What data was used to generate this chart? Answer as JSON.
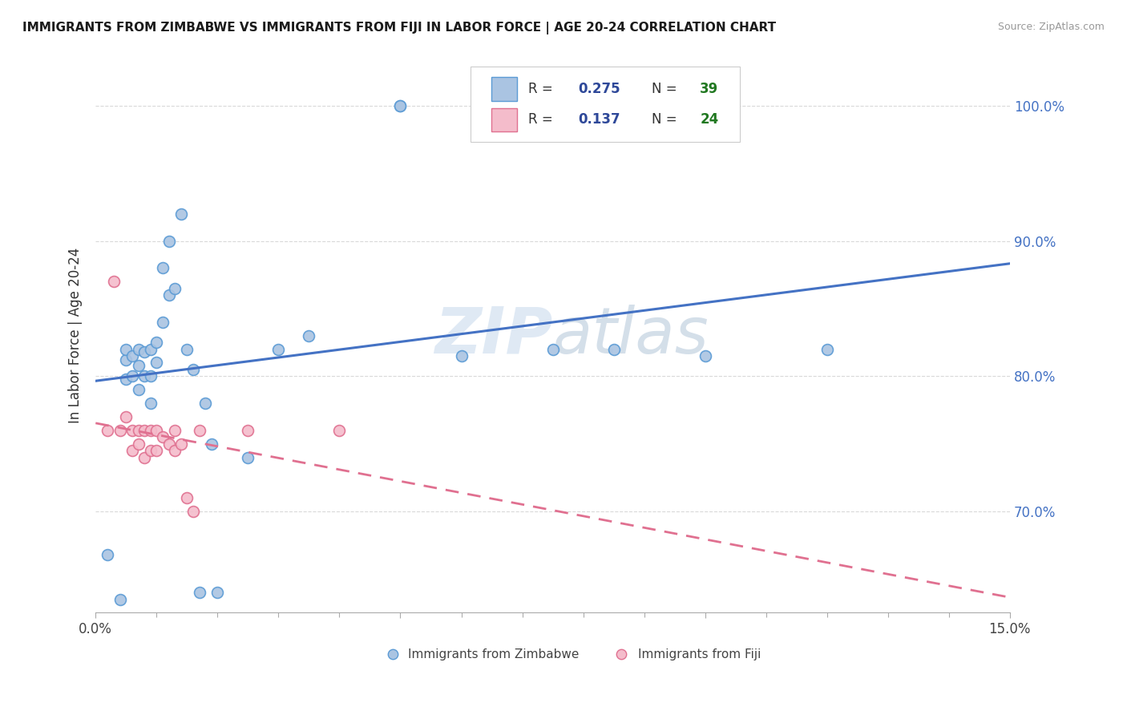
{
  "title": "IMMIGRANTS FROM ZIMBABWE VS IMMIGRANTS FROM FIJI IN LABOR FORCE | AGE 20-24 CORRELATION CHART",
  "source": "Source: ZipAtlas.com",
  "ylabel": "In Labor Force | Age 20-24",
  "ylabel_right_ticks": [
    "70.0%",
    "80.0%",
    "90.0%",
    "100.0%"
  ],
  "ylabel_right_vals": [
    0.7,
    0.8,
    0.9,
    1.0
  ],
  "xmin": 0.0,
  "xmax": 0.15,
  "ymin": 0.625,
  "ymax": 1.035,
  "zimbabwe_color": "#aac4e2",
  "zimbabwe_edge_color": "#5b9bd5",
  "fiji_color": "#f4bccb",
  "fiji_edge_color": "#e07090",
  "trend_zimbabwe_color": "#4472c4",
  "trend_fiji_color": "#e07090",
  "r_zimbabwe": 0.275,
  "n_zimbabwe": 39,
  "r_fiji": 0.137,
  "n_fiji": 24,
  "legend_r_color": "#2e4899",
  "legend_n_color": "#217821",
  "watermark_color": "#ccd9ea",
  "background_color": "#ffffff",
  "grid_color": "#d9d9d9",
  "marker_size": 100,
  "zimbabwe_x": [
    0.002,
    0.004,
    0.005,
    0.005,
    0.005,
    0.006,
    0.006,
    0.007,
    0.007,
    0.007,
    0.008,
    0.008,
    0.009,
    0.009,
    0.009,
    0.01,
    0.01,
    0.011,
    0.011,
    0.012,
    0.012,
    0.013,
    0.014,
    0.015,
    0.016,
    0.017,
    0.018,
    0.019,
    0.02,
    0.025,
    0.03,
    0.035,
    0.05,
    0.05,
    0.06,
    0.075,
    0.085,
    0.1,
    0.12
  ],
  "zimbabwe_y": [
    0.668,
    0.635,
    0.798,
    0.812,
    0.82,
    0.8,
    0.815,
    0.79,
    0.808,
    0.82,
    0.8,
    0.818,
    0.78,
    0.8,
    0.82,
    0.81,
    0.825,
    0.84,
    0.88,
    0.86,
    0.9,
    0.865,
    0.92,
    0.82,
    0.805,
    0.64,
    0.78,
    0.75,
    0.64,
    0.74,
    0.82,
    0.83,
    1.0,
    1.0,
    0.815,
    0.82,
    0.82,
    0.815,
    0.82
  ],
  "fiji_x": [
    0.002,
    0.003,
    0.004,
    0.005,
    0.006,
    0.006,
    0.007,
    0.007,
    0.008,
    0.008,
    0.009,
    0.009,
    0.01,
    0.01,
    0.011,
    0.012,
    0.013,
    0.013,
    0.014,
    0.015,
    0.016,
    0.017,
    0.025,
    0.04
  ],
  "fiji_y": [
    0.76,
    0.87,
    0.76,
    0.77,
    0.745,
    0.76,
    0.75,
    0.76,
    0.74,
    0.76,
    0.745,
    0.76,
    0.745,
    0.76,
    0.755,
    0.75,
    0.745,
    0.76,
    0.75,
    0.71,
    0.7,
    0.76,
    0.76,
    0.76
  ],
  "x_ticks": [
    0.0,
    0.05,
    0.1,
    0.15
  ],
  "x_tick_labels_show": [
    "0.0%",
    "15.0%"
  ],
  "x_tick_minor": [
    0.01,
    0.02,
    0.03,
    0.04,
    0.06,
    0.07,
    0.08,
    0.09,
    0.11,
    0.12,
    0.13,
    0.14
  ]
}
